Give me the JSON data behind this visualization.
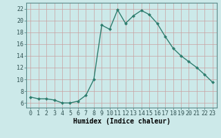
{
  "x": [
    0,
    1,
    2,
    3,
    4,
    5,
    6,
    7,
    8,
    9,
    10,
    11,
    12,
    13,
    14,
    15,
    16,
    17,
    18,
    19,
    20,
    21,
    22,
    23
  ],
  "y": [
    7.0,
    6.7,
    6.7,
    6.5,
    6.0,
    6.0,
    6.3,
    7.3,
    10.0,
    19.2,
    18.5,
    21.8,
    19.5,
    20.8,
    21.7,
    21.0,
    19.5,
    17.3,
    15.3,
    14.0,
    13.0,
    12.0,
    10.8,
    9.5
  ],
  "line_color": "#2e7d6e",
  "marker": "D",
  "markersize": 2.0,
  "linewidth": 1.0,
  "xlabel": "Humidex (Indice chaleur)",
  "xlabel_fontsize": 7,
  "yticks": [
    6,
    8,
    10,
    12,
    14,
    16,
    18,
    20,
    22
  ],
  "ylim": [
    5.2,
    23.0
  ],
  "xlim": [
    -0.5,
    23.5
  ],
  "background_color": "#cce9e9",
  "grid_color": "#c8a0a0",
  "tick_fontsize": 6.0,
  "spine_color": "#5a8a8a"
}
